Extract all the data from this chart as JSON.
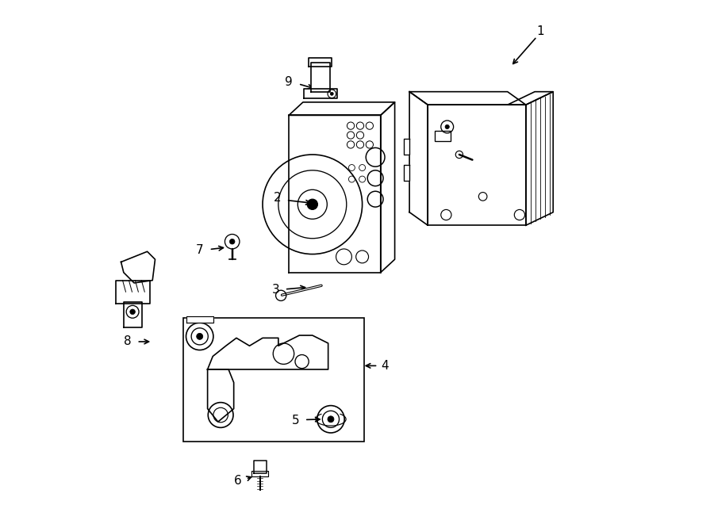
{
  "title": "",
  "background_color": "#ffffff",
  "line_color": "#000000",
  "line_width": 1.2,
  "fig_width": 9.0,
  "fig_height": 6.61
}
